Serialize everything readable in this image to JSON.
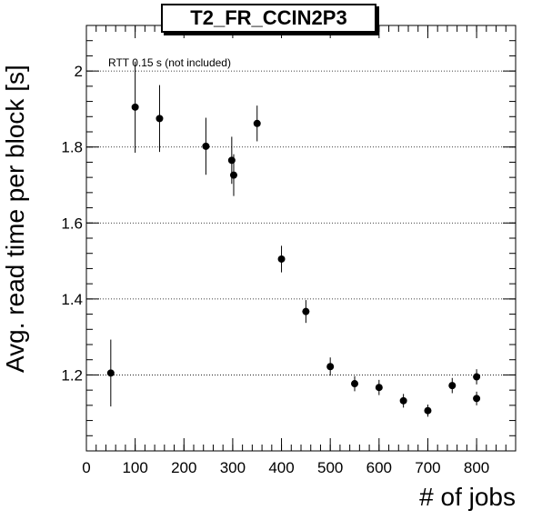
{
  "chart_data": {
    "type": "scatter",
    "title": "T2_FR_CCIN2P3",
    "xlabel": "# of jobs",
    "ylabel": "Avg. read time per block [s]",
    "annotation": "RTT 0.15 s (not included)",
    "xlim": [
      0,
      880
    ],
    "ylim": [
      1.0,
      2.12
    ],
    "x_ticks": [
      "0",
      "100",
      "200",
      "300",
      "400",
      "500",
      "600",
      "700",
      "800"
    ],
    "y_ticks": [
      "1.2",
      "1.4",
      "1.6",
      "1.8",
      "2"
    ],
    "grid": "horizontal dotted",
    "error_bars": true,
    "points": [
      {
        "x": 50,
        "y": 1.205,
        "err": 0.088
      },
      {
        "x": 100,
        "y": 1.905,
        "err": 0.12
      },
      {
        "x": 150,
        "y": 1.875,
        "err": 0.088
      },
      {
        "x": 245,
        "y": 1.802,
        "err": 0.075
      },
      {
        "x": 298,
        "y": 1.765,
        "err": 0.062
      },
      {
        "x": 302,
        "y": 1.726,
        "err": 0.055
      },
      {
        "x": 350,
        "y": 1.862,
        "err": 0.047
      },
      {
        "x": 400,
        "y": 1.505,
        "err": 0.035
      },
      {
        "x": 450,
        "y": 1.367,
        "err": 0.03
      },
      {
        "x": 500,
        "y": 1.222,
        "err": 0.024
      },
      {
        "x": 550,
        "y": 1.177,
        "err": 0.02
      },
      {
        "x": 600,
        "y": 1.167,
        "err": 0.02
      },
      {
        "x": 650,
        "y": 1.132,
        "err": 0.018
      },
      {
        "x": 700,
        "y": 1.106,
        "err": 0.016
      },
      {
        "x": 750,
        "y": 1.172,
        "err": 0.02
      },
      {
        "x": 800,
        "y": 1.195,
        "err": 0.02
      },
      {
        "x": 800,
        "y": 1.138,
        "err": 0.018
      }
    ]
  }
}
